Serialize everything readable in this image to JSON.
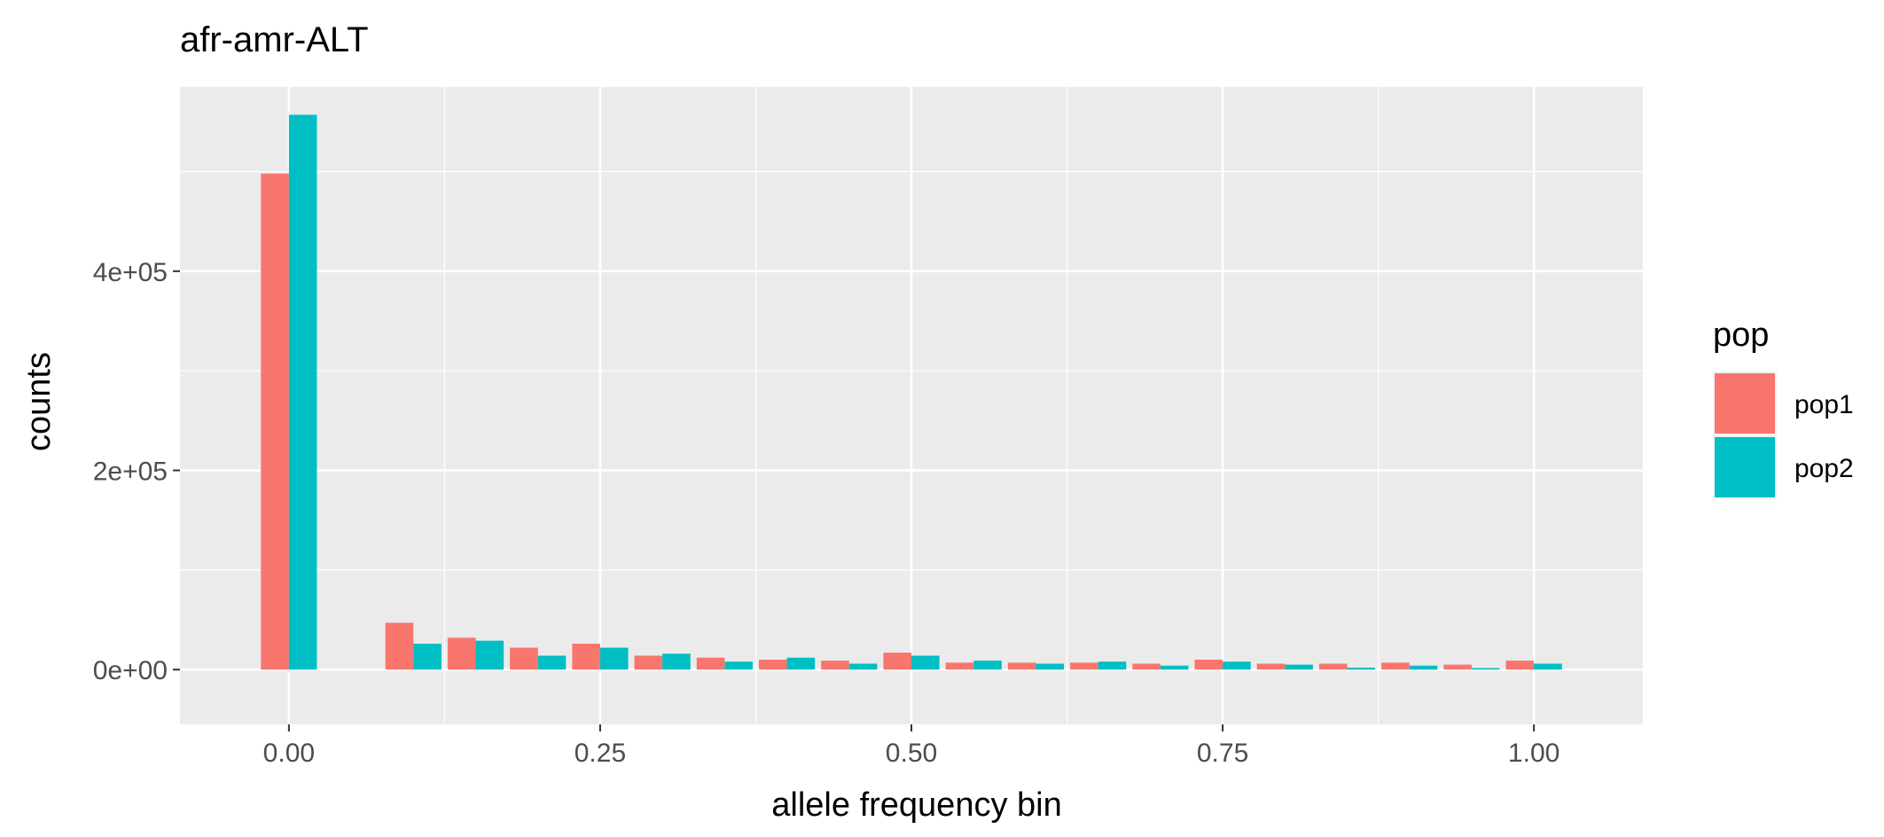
{
  "chart_data": {
    "type": "bar",
    "title": "afr-amr-ALT",
    "xlabel": "allele frequency bin",
    "ylabel": "counts",
    "xlim": [
      -0.0875,
      1.0875
    ],
    "ylim": [
      -55000,
      585000
    ],
    "x_ticks": [
      {
        "value": 0.0,
        "label": "0.00"
      },
      {
        "value": 0.25,
        "label": "0.25"
      },
      {
        "value": 0.5,
        "label": "0.50"
      },
      {
        "value": 0.75,
        "label": "0.75"
      },
      {
        "value": 1.0,
        "label": "1.00"
      }
    ],
    "y_ticks": [
      {
        "value": 0,
        "label": "0e+00"
      },
      {
        "value": 200000,
        "label": "2e+05"
      },
      {
        "value": 400000,
        "label": "4e+05"
      }
    ],
    "bin_width": 0.05,
    "grid": true,
    "legend": {
      "title": "pop",
      "position": "right"
    },
    "x": [
      0.0,
      0.05,
      0.1,
      0.15,
      0.2,
      0.25,
      0.3,
      0.35,
      0.4,
      0.45,
      0.5,
      0.55,
      0.6,
      0.65,
      0.7,
      0.75,
      0.8,
      0.85,
      0.9,
      0.95,
      1.0
    ],
    "series": [
      {
        "name": "pop1",
        "color": "#F8766D",
        "values": [
          498000,
          0,
          47000,
          32000,
          22000,
          26000,
          14000,
          12000,
          10000,
          9000,
          17000,
          7000,
          7000,
          7000,
          6000,
          10000,
          6000,
          6000,
          7000,
          5000,
          9000
        ]
      },
      {
        "name": "pop2",
        "color": "#00BFC4",
        "values": [
          557000,
          0,
          26000,
          29000,
          14000,
          22000,
          16000,
          8000,
          12000,
          6000,
          14000,
          9000,
          6000,
          8000,
          4000,
          8000,
          5000,
          2000,
          4000,
          1500,
          6000
        ]
      }
    ]
  }
}
